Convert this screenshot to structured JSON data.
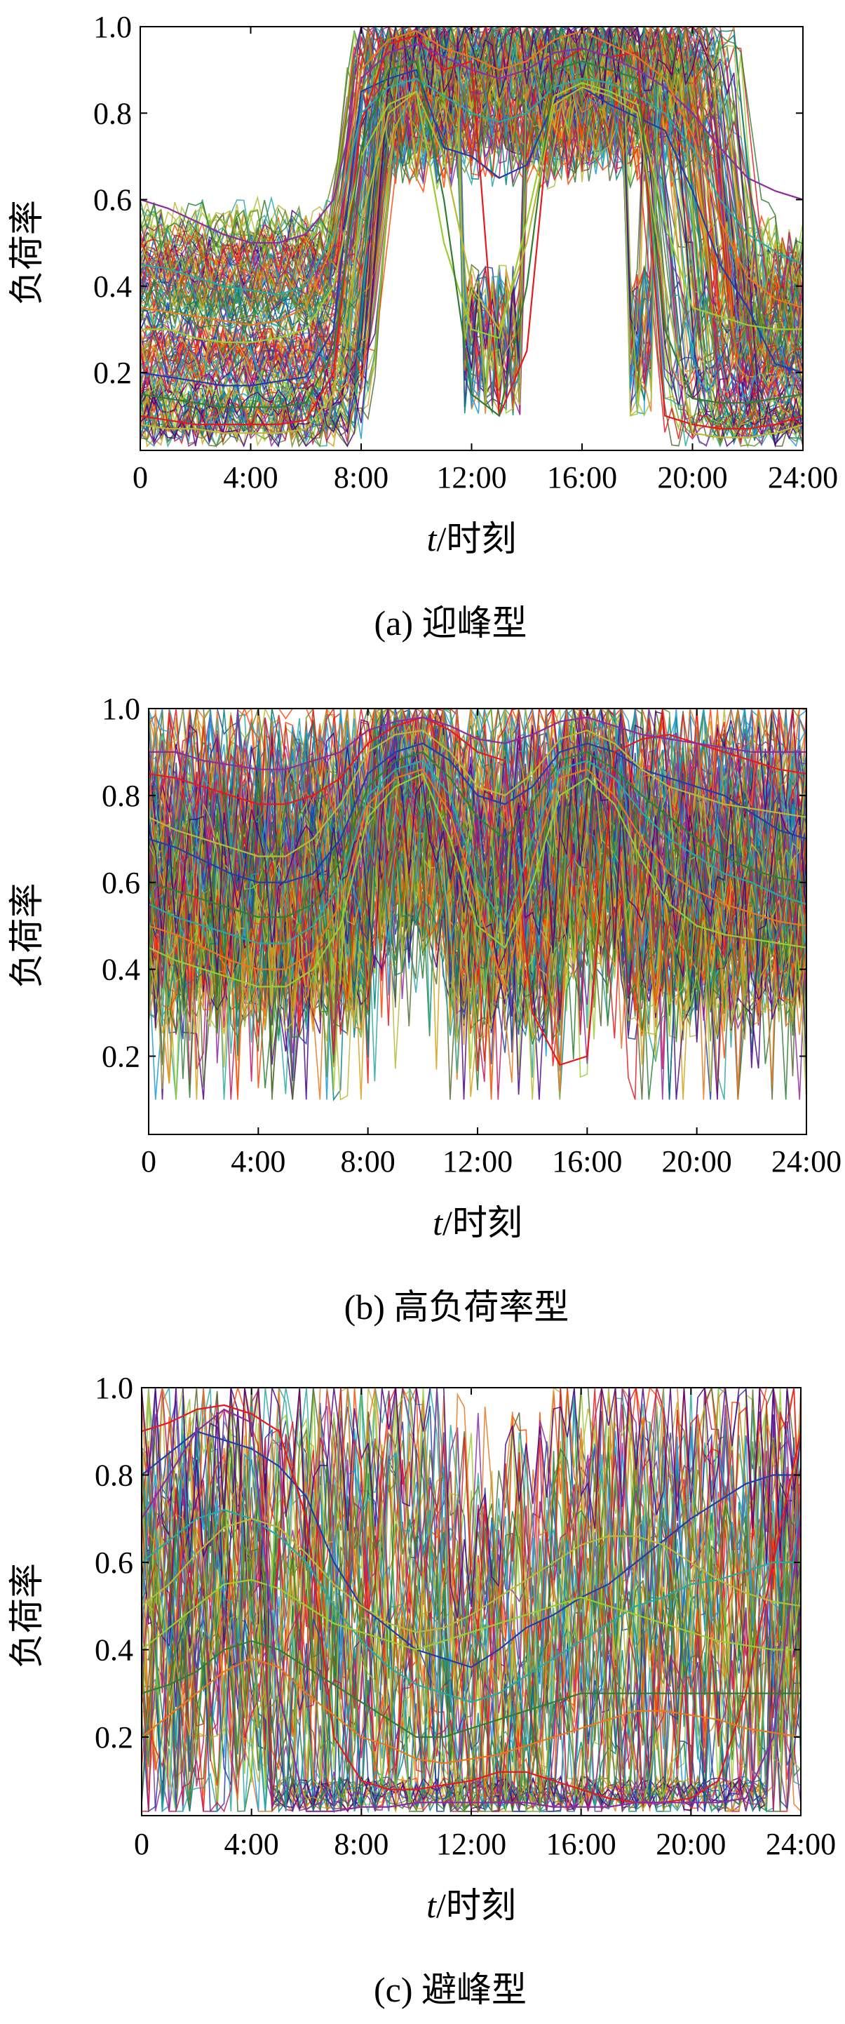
{
  "chart_data": [
    {
      "type": "line",
      "caption": "(a) 迎峰型",
      "xlabel_var": "t",
      "xlabel_text": "/时刻",
      "ylabel": "负荷率",
      "x_tick_labels": [
        "0",
        "4:00",
        "8:00",
        "12:00",
        "16:00",
        "20:00",
        "24:00"
      ],
      "x_tick_hours": [
        0,
        4,
        8,
        12,
        16,
        20,
        24
      ],
      "y_tick_labels": [
        "0.2",
        "0.4",
        "0.6",
        "0.8",
        "1.0"
      ],
      "y_tick_values": [
        0.2,
        0.4,
        0.6,
        0.8,
        1.0
      ],
      "xlim": [
        0,
        24
      ],
      "ylim": [
        0.02,
        1.0
      ],
      "grid": false,
      "legend": "none",
      "pattern": "peak",
      "series": [
        {
          "color": "#1f3fa8",
          "values": [
            0.2,
            0.19,
            0.18,
            0.17,
            0.17,
            0.18,
            0.19,
            0.3,
            0.85,
            0.88,
            0.9,
            0.72,
            0.7,
            0.65,
            0.68,
            0.83,
            0.86,
            0.82,
            0.79,
            0.76,
            0.62,
            0.45,
            0.35,
            0.22,
            0.2
          ]
        },
        {
          "color": "#e41a1c",
          "values": [
            0.1,
            0.09,
            0.08,
            0.08,
            0.08,
            0.08,
            0.09,
            0.2,
            0.78,
            0.96,
            0.98,
            0.9,
            0.92,
            0.1,
            0.25,
            0.91,
            0.95,
            0.93,
            0.94,
            0.1,
            0.08,
            0.07,
            0.07,
            0.08,
            0.1
          ]
        },
        {
          "color": "#2aa8a0",
          "values": [
            0.45,
            0.44,
            0.42,
            0.4,
            0.39,
            0.38,
            0.4,
            0.52,
            0.8,
            0.86,
            0.88,
            0.84,
            0.8,
            0.78,
            0.8,
            0.86,
            0.88,
            0.87,
            0.84,
            0.8,
            0.72,
            0.6,
            0.52,
            0.48,
            0.45
          ]
        },
        {
          "color": "#9acd32",
          "values": [
            0.3,
            0.3,
            0.28,
            0.27,
            0.27,
            0.28,
            0.3,
            0.4,
            0.7,
            0.82,
            0.85,
            0.5,
            0.3,
            0.28,
            0.55,
            0.84,
            0.87,
            0.85,
            0.82,
            0.55,
            0.35,
            0.33,
            0.31,
            0.3,
            0.3
          ]
        },
        {
          "color": "#8e2c9f",
          "values": [
            0.6,
            0.58,
            0.55,
            0.52,
            0.5,
            0.5,
            0.52,
            0.6,
            0.88,
            0.94,
            0.96,
            0.93,
            0.9,
            0.88,
            0.9,
            0.94,
            0.95,
            0.93,
            0.9,
            0.86,
            0.8,
            0.72,
            0.65,
            0.62,
            0.6
          ]
        },
        {
          "color": "#2e7d32",
          "values": [
            0.15,
            0.14,
            0.13,
            0.12,
            0.12,
            0.12,
            0.13,
            0.25,
            0.72,
            0.9,
            0.92,
            0.6,
            0.15,
            0.1,
            0.4,
            0.9,
            0.92,
            0.9,
            0.88,
            0.3,
            0.14,
            0.13,
            0.13,
            0.14,
            0.15
          ]
        },
        {
          "color": "#b8b83a",
          "values": [
            0.08,
            0.07,
            0.07,
            0.06,
            0.06,
            0.06,
            0.07,
            0.15,
            0.55,
            0.8,
            0.85,
            0.7,
            0.4,
            0.3,
            0.5,
            0.82,
            0.86,
            0.84,
            0.8,
            0.4,
            0.06,
            0.05,
            0.05,
            0.06,
            0.08
          ]
        },
        {
          "color": "#e6781e",
          "values": [
            0.35,
            0.34,
            0.33,
            0.32,
            0.31,
            0.32,
            0.35,
            0.5,
            0.9,
            0.97,
            0.99,
            0.95,
            0.93,
            0.9,
            0.92,
            0.97,
            0.99,
            0.96,
            0.93,
            0.88,
            0.75,
            0.55,
            0.42,
            0.37,
            0.35
          ]
        }
      ]
    },
    {
      "type": "line",
      "caption": "(b) 高负荷率型",
      "xlabel_var": "t",
      "xlabel_text": "/时刻",
      "ylabel": "负荷率",
      "x_tick_labels": [
        "0",
        "4:00",
        "8:00",
        "12:00",
        "16:00",
        "20:00",
        "24:00"
      ],
      "x_tick_hours": [
        0,
        4,
        8,
        12,
        16,
        20,
        24
      ],
      "y_tick_labels": [
        "0.2",
        "0.4",
        "0.6",
        "0.8",
        "1.0"
      ],
      "y_tick_values": [
        0.2,
        0.4,
        0.6,
        0.8,
        1.0
      ],
      "xlim": [
        0,
        24
      ],
      "ylim": [
        0.02,
        1.0
      ],
      "grid": false,
      "legend": "none",
      "pattern": "high",
      "series": [
        {
          "color": "#1f3fa8",
          "values": [
            0.7,
            0.68,
            0.65,
            0.62,
            0.6,
            0.6,
            0.62,
            0.7,
            0.85,
            0.9,
            0.92,
            0.88,
            0.8,
            0.78,
            0.82,
            0.9,
            0.92,
            0.9,
            0.86,
            0.84,
            0.82,
            0.8,
            0.76,
            0.72,
            0.7
          ]
        },
        {
          "color": "#e41a1c",
          "values": [
            0.85,
            0.84,
            0.82,
            0.8,
            0.78,
            0.78,
            0.8,
            0.84,
            0.92,
            0.96,
            0.98,
            0.95,
            0.9,
            0.88,
            0.3,
            0.18,
            0.2,
            0.9,
            0.93,
            0.94,
            0.92,
            0.9,
            0.88,
            0.86,
            0.85
          ]
        },
        {
          "color": "#2aa8a0",
          "values": [
            0.55,
            0.52,
            0.5,
            0.48,
            0.46,
            0.46,
            0.5,
            0.6,
            0.8,
            0.86,
            0.88,
            0.8,
            0.6,
            0.5,
            0.7,
            0.86,
            0.88,
            0.84,
            0.76,
            0.7,
            0.66,
            0.62,
            0.6,
            0.57,
            0.55
          ]
        },
        {
          "color": "#9acd32",
          "values": [
            0.45,
            0.42,
            0.4,
            0.38,
            0.36,
            0.36,
            0.4,
            0.5,
            0.75,
            0.82,
            0.85,
            0.7,
            0.5,
            0.45,
            0.6,
            0.8,
            0.84,
            0.78,
            0.65,
            0.55,
            0.5,
            0.48,
            0.47,
            0.46,
            0.45
          ]
        },
        {
          "color": "#8e2c9f",
          "values": [
            0.9,
            0.9,
            0.88,
            0.87,
            0.86,
            0.86,
            0.88,
            0.9,
            0.95,
            0.97,
            0.98,
            0.96,
            0.93,
            0.92,
            0.94,
            0.97,
            0.98,
            0.96,
            0.94,
            0.93,
            0.92,
            0.91,
            0.9,
            0.9,
            0.9
          ]
        },
        {
          "color": "#2e7d32",
          "values": [
            0.6,
            0.58,
            0.56,
            0.54,
            0.52,
            0.52,
            0.55,
            0.65,
            0.82,
            0.88,
            0.9,
            0.84,
            0.75,
            0.7,
            0.78,
            0.88,
            0.9,
            0.86,
            0.8,
            0.75,
            0.7,
            0.66,
            0.63,
            0.61,
            0.6
          ]
        },
        {
          "color": "#b8b83a",
          "values": [
            0.75,
            0.72,
            0.7,
            0.68,
            0.66,
            0.66,
            0.7,
            0.78,
            0.9,
            0.94,
            0.95,
            0.9,
            0.82,
            0.8,
            0.85,
            0.93,
            0.95,
            0.92,
            0.86,
            0.82,
            0.8,
            0.78,
            0.77,
            0.76,
            0.75
          ]
        },
        {
          "color": "#e6781e",
          "values": [
            0.5,
            0.48,
            0.45,
            0.42,
            0.4,
            0.4,
            0.44,
            0.55,
            0.78,
            0.84,
            0.86,
            0.76,
            0.55,
            0.35,
            0.65,
            0.84,
            0.86,
            0.8,
            0.7,
            0.62,
            0.58,
            0.55,
            0.53,
            0.51,
            0.5
          ]
        }
      ]
    },
    {
      "type": "line",
      "caption": "(c) 避峰型",
      "xlabel_var": "t",
      "xlabel_text": "/时刻",
      "ylabel": "负荷率",
      "x_tick_labels": [
        "0",
        "4:00",
        "8:00",
        "12:00",
        "16:00",
        "20:00",
        "24:00"
      ],
      "x_tick_hours": [
        0,
        4,
        8,
        12,
        16,
        20,
        24
      ],
      "y_tick_labels": [
        "0.2",
        "0.4",
        "0.6",
        "0.8",
        "1.0"
      ],
      "y_tick_values": [
        0.2,
        0.4,
        0.6,
        0.8,
        1.0
      ],
      "xlim": [
        0,
        24
      ],
      "ylim": [
        0.02,
        1.0
      ],
      "grid": false,
      "legend": "none",
      "pattern": "valley",
      "series": [
        {
          "color": "#1f3fa8",
          "values": [
            0.8,
            0.85,
            0.9,
            0.88,
            0.86,
            0.82,
            0.75,
            0.6,
            0.5,
            0.45,
            0.4,
            0.38,
            0.36,
            0.4,
            0.45,
            0.48,
            0.52,
            0.55,
            0.6,
            0.65,
            0.7,
            0.74,
            0.78,
            0.8,
            0.8
          ]
        },
        {
          "color": "#e41a1c",
          "values": [
            0.9,
            0.92,
            0.95,
            0.96,
            0.94,
            0.9,
            0.7,
            0.2,
            0.1,
            0.08,
            0.08,
            0.09,
            0.1,
            0.12,
            0.12,
            0.1,
            0.08,
            0.06,
            0.05,
            0.05,
            0.06,
            0.1,
            0.3,
            0.6,
            0.9
          ]
        },
        {
          "color": "#2aa8a0",
          "values": [
            0.6,
            0.65,
            0.7,
            0.72,
            0.7,
            0.66,
            0.6,
            0.5,
            0.42,
            0.36,
            0.32,
            0.3,
            0.28,
            0.3,
            0.34,
            0.38,
            0.42,
            0.46,
            0.5,
            0.52,
            0.55,
            0.56,
            0.58,
            0.6,
            0.6
          ]
        },
        {
          "color": "#9acd32",
          "values": [
            0.4,
            0.45,
            0.5,
            0.55,
            0.56,
            0.54,
            0.5,
            0.46,
            0.44,
            0.42,
            0.4,
            0.42,
            0.44,
            0.46,
            0.48,
            0.5,
            0.52,
            0.5,
            0.48,
            0.46,
            0.44,
            0.42,
            0.41,
            0.4,
            0.4
          ]
        },
        {
          "color": "#8e2c9f",
          "values": [
            0.7,
            0.8,
            0.9,
            0.95,
            0.92,
            0.3,
            0.03,
            0.03,
            0.04,
            0.04,
            0.05,
            0.05,
            0.05,
            0.05,
            0.05,
            0.04,
            0.04,
            0.04,
            0.05,
            0.05,
            0.05,
            0.05,
            0.06,
            0.2,
            0.7
          ]
        },
        {
          "color": "#2e7d32",
          "values": [
            0.3,
            0.32,
            0.35,
            0.4,
            0.42,
            0.4,
            0.36,
            0.32,
            0.28,
            0.24,
            0.2,
            0.2,
            0.22,
            0.24,
            0.26,
            0.28,
            0.3,
            0.3,
            0.3,
            0.3,
            0.3,
            0.3,
            0.3,
            0.3,
            0.3
          ]
        },
        {
          "color": "#b8b83a",
          "values": [
            0.5,
            0.55,
            0.62,
            0.68,
            0.7,
            0.68,
            0.62,
            0.55,
            0.5,
            0.46,
            0.44,
            0.45,
            0.48,
            0.52,
            0.56,
            0.6,
            0.64,
            0.66,
            0.66,
            0.64,
            0.6,
            0.56,
            0.53,
            0.51,
            0.5
          ]
        },
        {
          "color": "#e6781e",
          "values": [
            0.2,
            0.25,
            0.3,
            0.35,
            0.38,
            0.36,
            0.3,
            0.25,
            0.2,
            0.18,
            0.15,
            0.14,
            0.15,
            0.16,
            0.18,
            0.2,
            0.22,
            0.24,
            0.26,
            0.26,
            0.25,
            0.24,
            0.22,
            0.21,
            0.2
          ]
        }
      ]
    }
  ]
}
